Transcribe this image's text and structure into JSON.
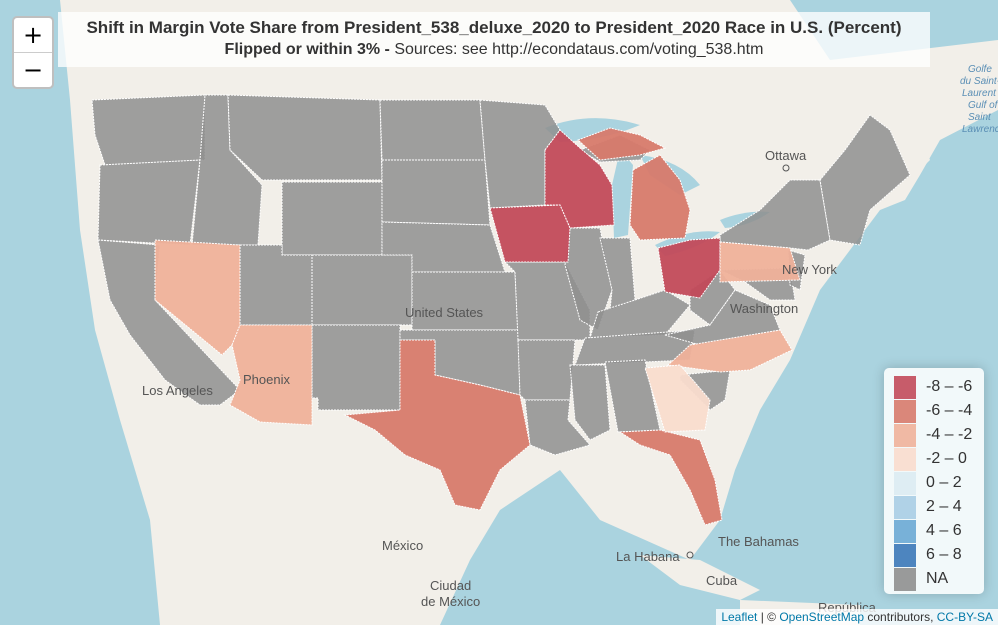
{
  "title": {
    "line1": "Shift in Margin Vote Share from President_538_deluxe_2020 to President_2020 Race in U.S. (Percent)",
    "line2_bold": "Flipped or within 3% -",
    "line2_rest": " Sources: see http://econdataus.com/voting_538.htm"
  },
  "zoom": {
    "in_label": "+",
    "out_label": "−"
  },
  "labels": {
    "ottawa": "Ottawa",
    "united_states": "United States",
    "washington": "Washington",
    "new_york": "New York",
    "los_angeles": "Los Angeles",
    "phoenix": "Phoenix",
    "mexico": "México",
    "ciudad_de_mexico_1": "Ciudad",
    "ciudad_de_mexico_2": "de México",
    "la_habana": "La Habana",
    "bahamas": "The Bahamas",
    "cuba": "Cuba",
    "republica": "República",
    "gulf_1": "Golfe",
    "gulf_2": "du Saint-",
    "gulf_3": "Laurent",
    "gulf_4": "Gulf of",
    "gulf_5": "Saint",
    "gulf_6": "Lawrence"
  },
  "legend": [
    {
      "label": "-8 – -6",
      "color": "#c24a5a"
    },
    {
      "label": "-6 – -4",
      "color": "#d77a6b"
    },
    {
      "label": "-4 – -2",
      "color": "#efb19a"
    },
    {
      "label": "-2 – 0",
      "color": "#f9dccd"
    },
    {
      "label": "0 – 2",
      "color": "#dcebf2"
    },
    {
      "label": "2 – 4",
      "color": "#a9cde4"
    },
    {
      "label": "4 – 6",
      "color": "#6aa8d4"
    },
    {
      "label": "6 – 8",
      "color": "#3b78b8"
    },
    {
      "label": "NA",
      "color": "#8f8f8f"
    }
  ],
  "state_shift_bins": {
    "Wisconsin": "-8 – -6",
    "Iowa": "-8 – -6",
    "Ohio": "-8 – -6",
    "Michigan": "-6 – -4",
    "Texas": "-6 – -4",
    "Florida": "-6 – -4",
    "Nevada": "-4 – -2",
    "Arizona": "-4 – -2",
    "Pennsylvania": "-4 – -2",
    "North Carolina": "-4 – -2",
    "Georgia": "-2 – 0"
  },
  "attribution": {
    "leaflet": "Leaflet",
    "sep": " | © ",
    "osm": "OpenStreetMap",
    "contrib": " contributors, ",
    "license": "CC-BY-SA"
  }
}
